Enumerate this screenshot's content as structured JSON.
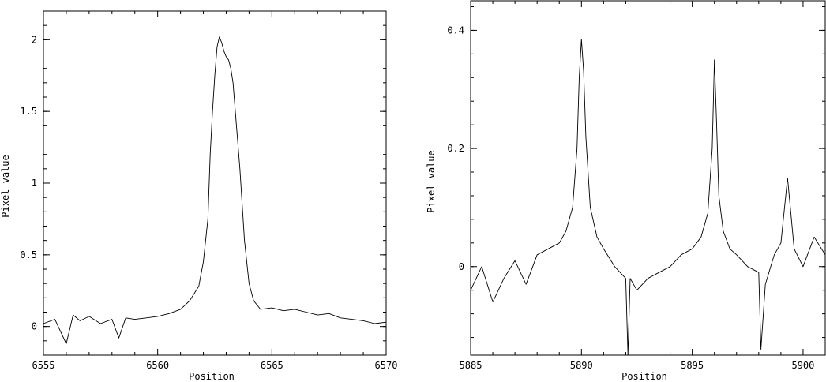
{
  "chart_data": [
    {
      "type": "line",
      "title": "",
      "xlabel": "Position",
      "ylabel": "Pixel value",
      "xlim": [
        6555,
        6570
      ],
      "ylim": [
        -0.2,
        2.2
      ],
      "xticks": [
        6555,
        6560,
        6565,
        6570
      ],
      "xtick_labels": [
        "6555",
        "6560",
        "6565",
        "6570"
      ],
      "yticks": [
        0,
        0.5,
        1,
        1.5,
        2
      ],
      "ytick_labels": [
        "0",
        "0.5",
        "1",
        "1.5",
        "2"
      ],
      "grid": false,
      "series": [
        {
          "x": [
            6555.0,
            6555.5,
            6556.0,
            6556.3,
            6556.6,
            6557.0,
            6557.5,
            6558.0,
            6558.3,
            6558.6,
            6559.0,
            6559.5,
            6560.0,
            6560.5,
            6561.0,
            6561.4,
            6561.8,
            6562.0,
            6562.2,
            6562.3,
            6562.4,
            6562.5,
            6562.6,
            6562.7,
            6562.8,
            6562.9,
            6563.0,
            6563.1,
            6563.2,
            6563.3,
            6563.4,
            6563.6,
            6563.8,
            6564.0,
            6564.2,
            6564.5,
            6565.0,
            6565.5,
            6566.0,
            6566.5,
            6567.0,
            6567.5,
            6568.0,
            6568.5,
            6569.0,
            6569.5,
            6570.0
          ],
          "y": [
            0.02,
            0.05,
            -0.12,
            0.08,
            0.04,
            0.07,
            0.02,
            0.05,
            -0.08,
            0.06,
            0.05,
            0.06,
            0.07,
            0.09,
            0.12,
            0.18,
            0.28,
            0.45,
            0.75,
            1.2,
            1.5,
            1.75,
            1.95,
            2.02,
            1.98,
            1.92,
            1.88,
            1.86,
            1.8,
            1.7,
            1.5,
            1.1,
            0.6,
            0.3,
            0.18,
            0.12,
            0.13,
            0.11,
            0.12,
            0.1,
            0.08,
            0.09,
            0.06,
            0.05,
            0.04,
            0.02,
            0.03
          ]
        }
      ]
    },
    {
      "type": "line",
      "title": "",
      "xlabel": "Position",
      "ylabel": "Pixel value",
      "xlim": [
        5885,
        5901
      ],
      "ylim": [
        -0.15,
        0.45
      ],
      "xticks": [
        5885,
        5890,
        5895,
        5900
      ],
      "xtick_labels": [
        "5885",
        "5890",
        "5895",
        "5900"
      ],
      "yticks": [
        0,
        0.2,
        0.4
      ],
      "ytick_labels": [
        "0",
        "0.2",
        "0.4"
      ],
      "grid": false,
      "series": [
        {
          "x": [
            5885.0,
            5885.5,
            5886.0,
            5886.5,
            5887.0,
            5887.5,
            5888.0,
            5888.5,
            5889.0,
            5889.3,
            5889.6,
            5889.8,
            5889.9,
            5890.0,
            5890.1,
            5890.2,
            5890.4,
            5890.7,
            5891.0,
            5891.5,
            5892.0,
            5892.1,
            5892.2,
            5892.5,
            5893.0,
            5893.5,
            5894.0,
            5894.5,
            5895.0,
            5895.4,
            5895.7,
            5895.9,
            5896.0,
            5896.1,
            5896.2,
            5896.4,
            5896.7,
            5897.0,
            5897.5,
            5898.0,
            5898.1,
            5898.3,
            5898.7,
            5899.0,
            5899.3,
            5899.6,
            5900.0,
            5900.5,
            5901.0
          ],
          "y": [
            -0.04,
            0.0,
            -0.06,
            -0.02,
            0.01,
            -0.03,
            0.02,
            0.03,
            0.04,
            0.06,
            0.1,
            0.2,
            0.32,
            0.385,
            0.33,
            0.22,
            0.1,
            0.05,
            0.03,
            0.0,
            -0.02,
            -0.15,
            -0.02,
            -0.04,
            -0.02,
            -0.01,
            0.0,
            0.02,
            0.03,
            0.05,
            0.09,
            0.2,
            0.35,
            0.24,
            0.12,
            0.06,
            0.03,
            0.02,
            0.0,
            -0.01,
            -0.14,
            -0.03,
            0.02,
            0.04,
            0.15,
            0.03,
            0.0,
            0.05,
            0.02
          ]
        }
      ]
    }
  ]
}
